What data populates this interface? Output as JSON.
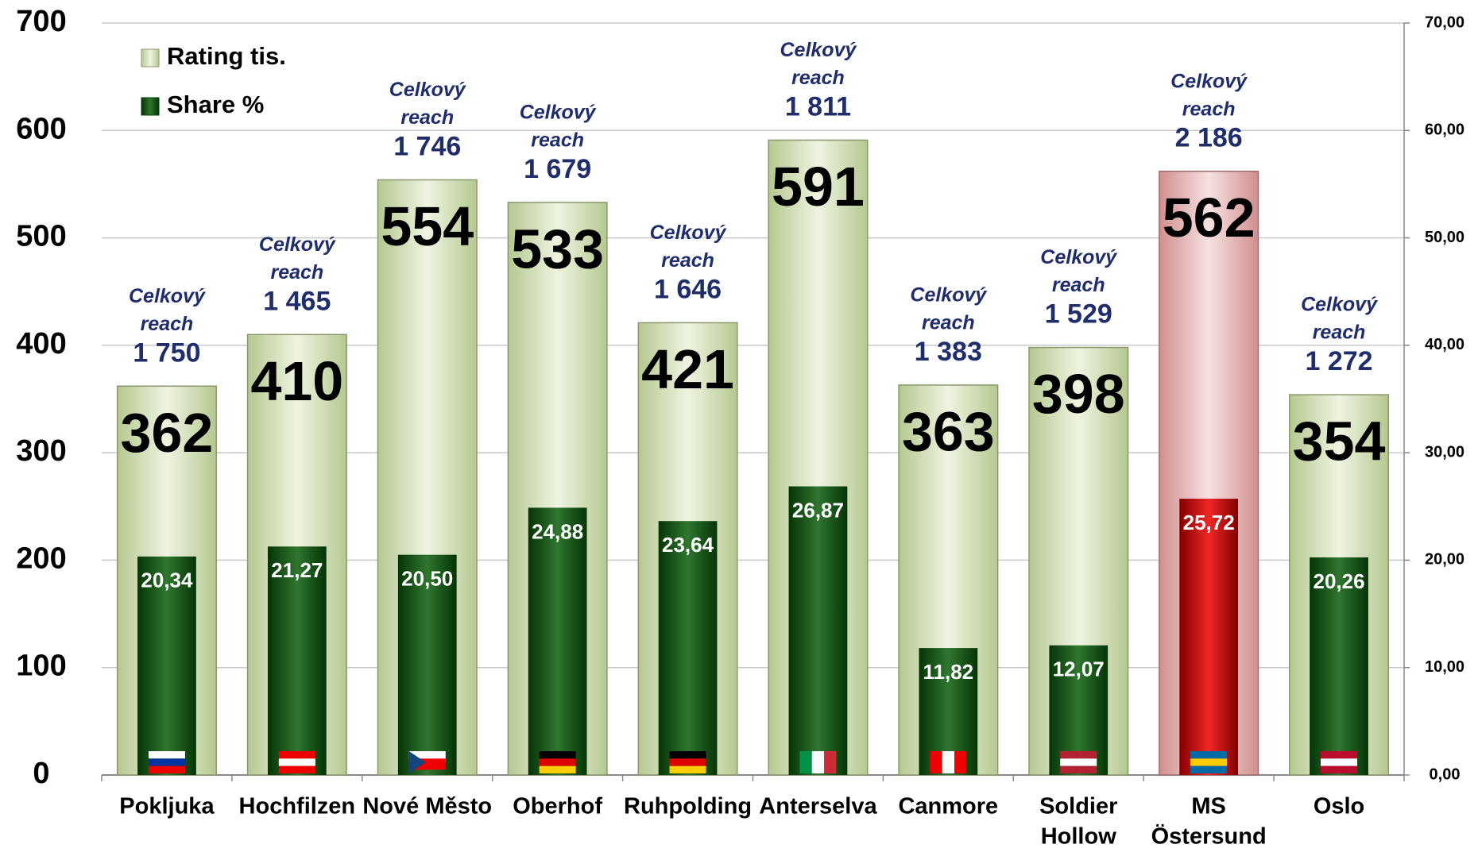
{
  "chart_data": {
    "type": "bar",
    "categories": [
      [
        "Pokljuka"
      ],
      [
        "Hochfilzen"
      ],
      [
        "Nové Město"
      ],
      [
        "Oberhof"
      ],
      [
        "Ruhpolding"
      ],
      [
        "Anterselva"
      ],
      [
        "Canmore"
      ],
      [
        "Soldier",
        "Hollow"
      ],
      [
        "MS",
        "Östersund"
      ],
      [
        "Oslo"
      ]
    ],
    "series": [
      {
        "name": "Rating tis.",
        "color": "#c5d99c",
        "colors": [
          "#c5d99c",
          "#c5d99c",
          "#c5d99c",
          "#c5d99c",
          "#c5d99c",
          "#c5d99c",
          "#c5d99c",
          "#c5d99c",
          "#e39a9a",
          "#c5d99c"
        ],
        "values": [
          362,
          410,
          554,
          533,
          421,
          591,
          363,
          398,
          562,
          354
        ]
      },
      {
        "name": "Share %",
        "color": "#0b5e0b",
        "colors": [
          "#0b5e0b",
          "#0b5e0b",
          "#0b5e0b",
          "#0b5e0b",
          "#0b5e0b",
          "#0b5e0b",
          "#0b5e0b",
          "#0b5e0b",
          "#ee0000",
          "#0b5e0b"
        ],
        "axis": "y2",
        "values": [
          20.34,
          21.27,
          20.5,
          24.88,
          23.64,
          26.87,
          11.82,
          12.07,
          25.72,
          20.26
        ],
        "value_labels": [
          "20,34",
          "21,27",
          "20,50",
          "24,88",
          "23,64",
          "26,87",
          "11,82",
          "12,07",
          "25,72",
          "20,26"
        ]
      }
    ],
    "annotation_title": [
      "Celkový",
      "reach"
    ],
    "annotations": [
      "1 750",
      "1 465",
      "1 746",
      "1 679",
      "1 646",
      "1 811",
      "1 383",
      "1 529",
      "2 186",
      "1 272"
    ],
    "ylim": [
      0,
      700
    ],
    "yticks": [
      0,
      100,
      200,
      300,
      400,
      500,
      600,
      700
    ],
    "y2lim": [
      0,
      70
    ],
    "y2ticks": [
      {
        "value": 0,
        "label": "0,00"
      },
      {
        "value": 10,
        "label": "10,00"
      },
      {
        "value": 20,
        "label": "20,00"
      },
      {
        "value": 30,
        "label": "30,00"
      },
      {
        "value": 40,
        "label": "40,00"
      },
      {
        "value": 50,
        "label": "50,00"
      },
      {
        "value": 60,
        "label": "60,00"
      },
      {
        "value": 70,
        "label": "70,00"
      }
    ],
    "grid": true,
    "legend": "upper left"
  }
}
